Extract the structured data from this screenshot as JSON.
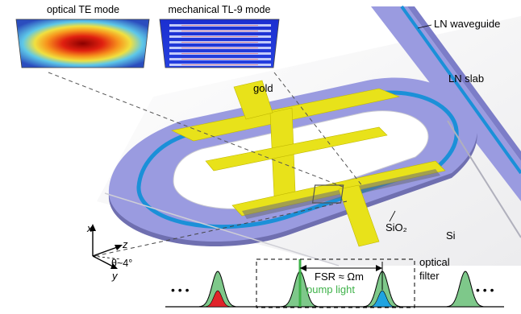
{
  "insets": {
    "optical_title": "optical TE mode",
    "mechanical_title": "mechanical TL-9 mode"
  },
  "labels": {
    "ln_waveguide": "LN waveguide",
    "ln_slab": "LN slab",
    "gold": "gold",
    "sio2": "SiO₂",
    "si": "Si"
  },
  "axes": {
    "x": "x",
    "z": "z",
    "y": "y",
    "theta": "θ~4°"
  },
  "spectrum": {
    "ellipsis": "• • •",
    "fsr": "FSR ≈ Ωm",
    "pump": "pump light",
    "filter_line1": "optical",
    "filter_line2": "filter"
  },
  "colors": {
    "slab": "#9A9BE0",
    "waveguide": "#1B90D8",
    "gold": "#E8E21A",
    "peak_fill": "#7EC88A",
    "red": "#E0242A",
    "blue": "#1FA3E0",
    "pump": "#3FB24A"
  }
}
